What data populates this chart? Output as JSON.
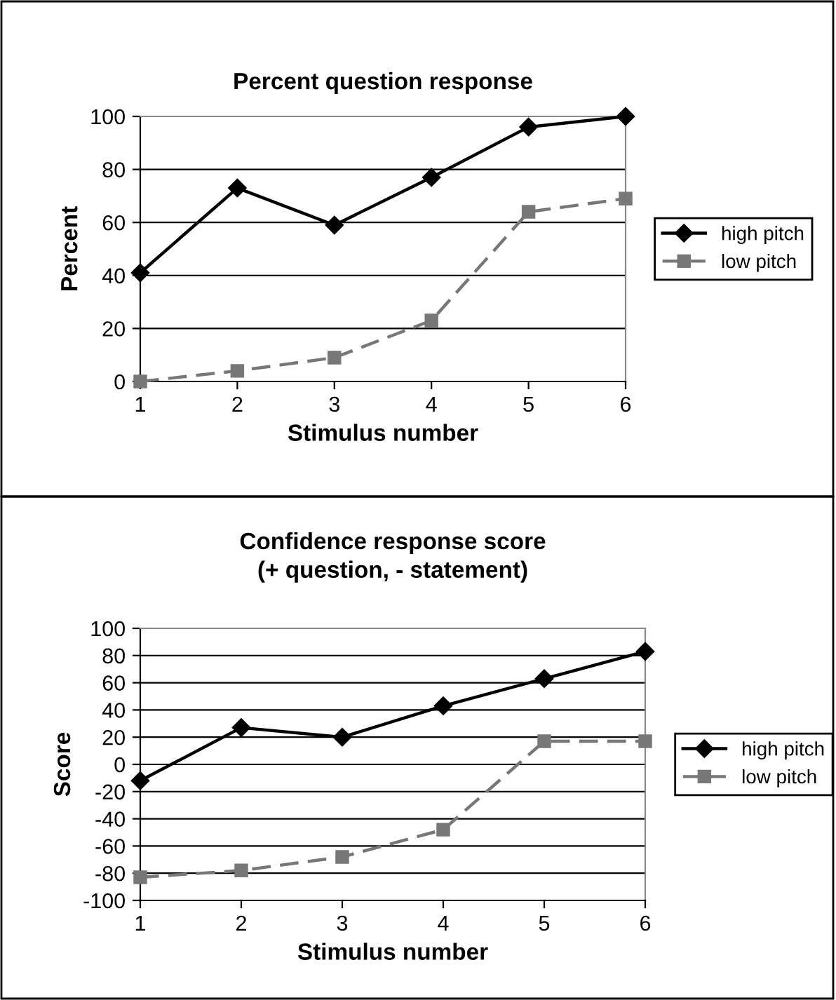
{
  "chart_data": [
    {
      "type": "line",
      "title": "Percent question response",
      "xlabel": "Stimulus number",
      "ylabel": "Percent",
      "categories": [
        "1",
        "2",
        "3",
        "4",
        "5",
        "6"
      ],
      "series": [
        {
          "name": "high pitch",
          "color": "#000000",
          "values": [
            41,
            73,
            59,
            77,
            96,
            100
          ],
          "marker": "diamond",
          "line_style": "solid"
        },
        {
          "name": "low pitch",
          "color": "#777777",
          "values": [
            0,
            4,
            9,
            23,
            64,
            69
          ],
          "marker": "square",
          "line_style": "dashed"
        }
      ],
      "ylim": [
        0,
        100
      ],
      "yticks": [
        0,
        20,
        40,
        60,
        80,
        100
      ],
      "grid": "y",
      "legend": "right"
    },
    {
      "type": "line",
      "title": "Confidence response score\n(+ question, - statement)",
      "xlabel": "Stimulus number",
      "ylabel": "Score",
      "categories": [
        "1",
        "2",
        "3",
        "4",
        "5",
        "6"
      ],
      "series": [
        {
          "name": "high pitch",
          "color": "#000000",
          "values": [
            -12,
            27,
            20,
            43,
            63,
            83
          ],
          "marker": "diamond",
          "line_style": "solid"
        },
        {
          "name": "low pitch",
          "color": "#777777",
          "values": [
            -83,
            -78,
            -68,
            -48,
            17,
            17
          ],
          "marker": "square",
          "line_style": "dashed"
        }
      ],
      "ylim": [
        -100,
        100
      ],
      "yticks": [
        -100,
        -80,
        -60,
        -40,
        -20,
        0,
        20,
        40,
        60,
        80,
        100
      ],
      "grid": "y",
      "legend": "right"
    }
  ]
}
